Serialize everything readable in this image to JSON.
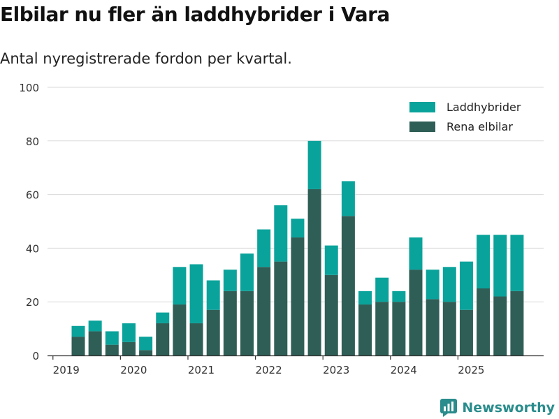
{
  "header": {
    "title": "Elbilar nu fler än laddhybrider i Vara",
    "subtitle": "Antal nyregistrerade fordon per kvartal."
  },
  "branding": {
    "name": "Newsworthy",
    "color": "#2a8c8c"
  },
  "chart_data": {
    "type": "bar",
    "stacked": true,
    "title": "Elbilar nu fler än laddhybrider i Vara",
    "subtitle": "Antal nyregistrerade fordon per kvartal.",
    "xlabel": "",
    "ylabel": "",
    "ylim": [
      0,
      100
    ],
    "yticks": [
      0,
      20,
      40,
      60,
      80,
      100
    ],
    "grid": true,
    "legend_position": "top-right",
    "x_tick_labels": [
      "2019",
      "2020",
      "2021",
      "2022",
      "2023",
      "2024",
      "2025"
    ],
    "categories": [
      "2019 Q2",
      "2019 Q3",
      "2019 Q4",
      "2020 Q1",
      "2020 Q2",
      "2020 Q3",
      "2020 Q4",
      "2021 Q1",
      "2021 Q2",
      "2021 Q3",
      "2021 Q4",
      "2022 Q1",
      "2022 Q2",
      "2022 Q3",
      "2022 Q4",
      "2023 Q1",
      "2023 Q2",
      "2023 Q3",
      "2023 Q4",
      "2024 Q1",
      "2024 Q2",
      "2024 Q3",
      "2024 Q4",
      "2025 Q1",
      "2025 Q2",
      "2025 Q3",
      "2025 Q4"
    ],
    "series": [
      {
        "name": "Rena elbilar",
        "color": "#2f5e56",
        "values": [
          7,
          9,
          4,
          5,
          2,
          12,
          19,
          12,
          17,
          24,
          24,
          33,
          35,
          44,
          62,
          30,
          52,
          19,
          20,
          20,
          32,
          21,
          20,
          17,
          25,
          22,
          24
        ]
      },
      {
        "name": "Laddhybrider",
        "color": "#0aa39b",
        "values": [
          4,
          4,
          5,
          7,
          5,
          4,
          14,
          22,
          11,
          8,
          14,
          14,
          21,
          7,
          18,
          11,
          13,
          5,
          9,
          4,
          12,
          11,
          13,
          18,
          20,
          23,
          21
        ]
      }
    ],
    "legend": [
      "Laddhybrider",
      "Rena elbilar"
    ]
  }
}
